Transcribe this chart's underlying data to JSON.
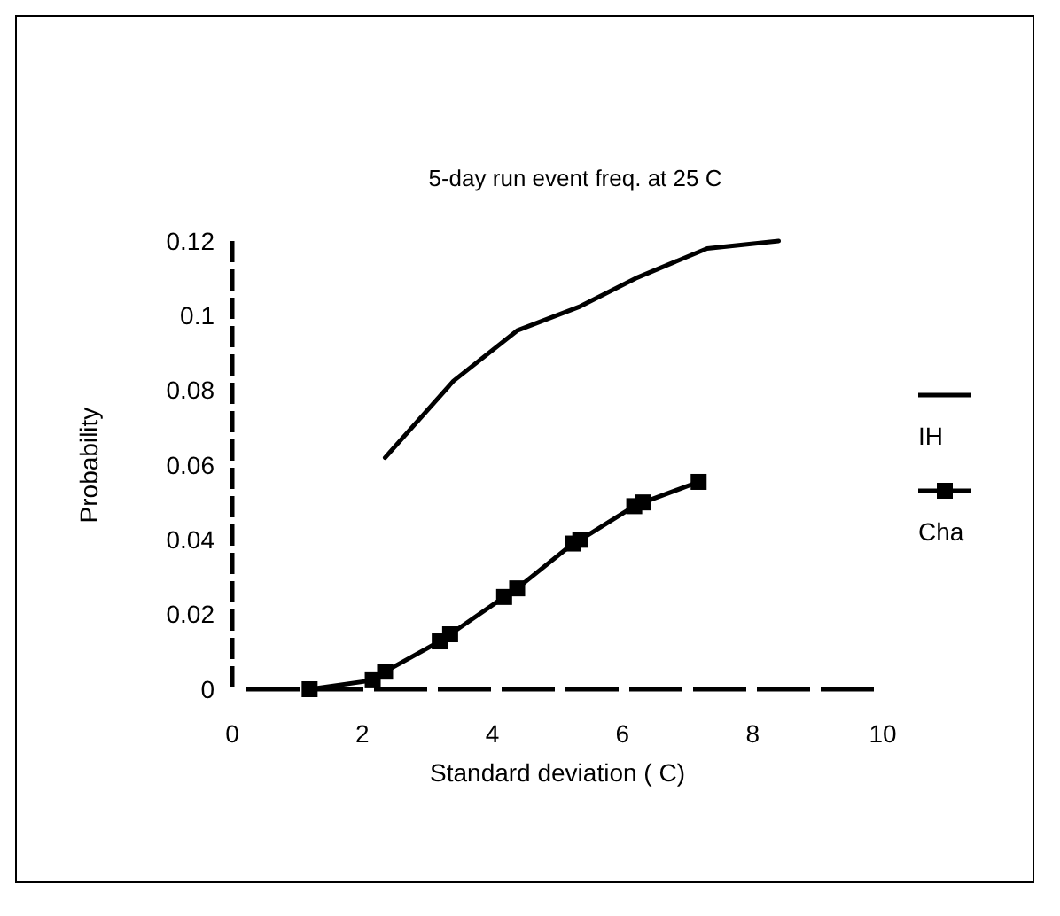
{
  "chart_data": {
    "type": "line",
    "title": "5-day run event freq. at 25 C",
    "xlabel": "Standard deviation ( C)",
    "ylabel": "Probability",
    "xlim": [
      0,
      10
    ],
    "xticks": [
      0,
      2,
      4,
      6,
      8,
      10
    ],
    "ylim": [
      0,
      0.12
    ],
    "yticks": [
      0,
      0.02,
      0.04,
      0.06,
      0.08,
      0.1,
      0.12
    ],
    "grid": false,
    "legend": "right",
    "line_style": "solid",
    "series": [
      {
        "name": "IH",
        "color": "#000000",
        "marker": "none",
        "x": [
          2.35,
          3.4,
          4.38,
          5.35,
          6.2,
          7.3,
          8.4
        ],
        "values": [
          0.062,
          0.0825,
          0.096,
          0.1025,
          0.11,
          0.118,
          0.12
        ]
      },
      {
        "name": "Cha",
        "color": "#000000",
        "marker": "square",
        "x": [
          1.19,
          2.16,
          2.35,
          3.19,
          3.35,
          4.18,
          4.38,
          5.24,
          5.35,
          6.18,
          6.32,
          7.17
        ],
        "values": [
          0,
          0.0024,
          0.0047,
          0.0128,
          0.0147,
          0.0247,
          0.027,
          0.039,
          0.04,
          0.049,
          0.05,
          0.0555
        ]
      }
    ]
  }
}
